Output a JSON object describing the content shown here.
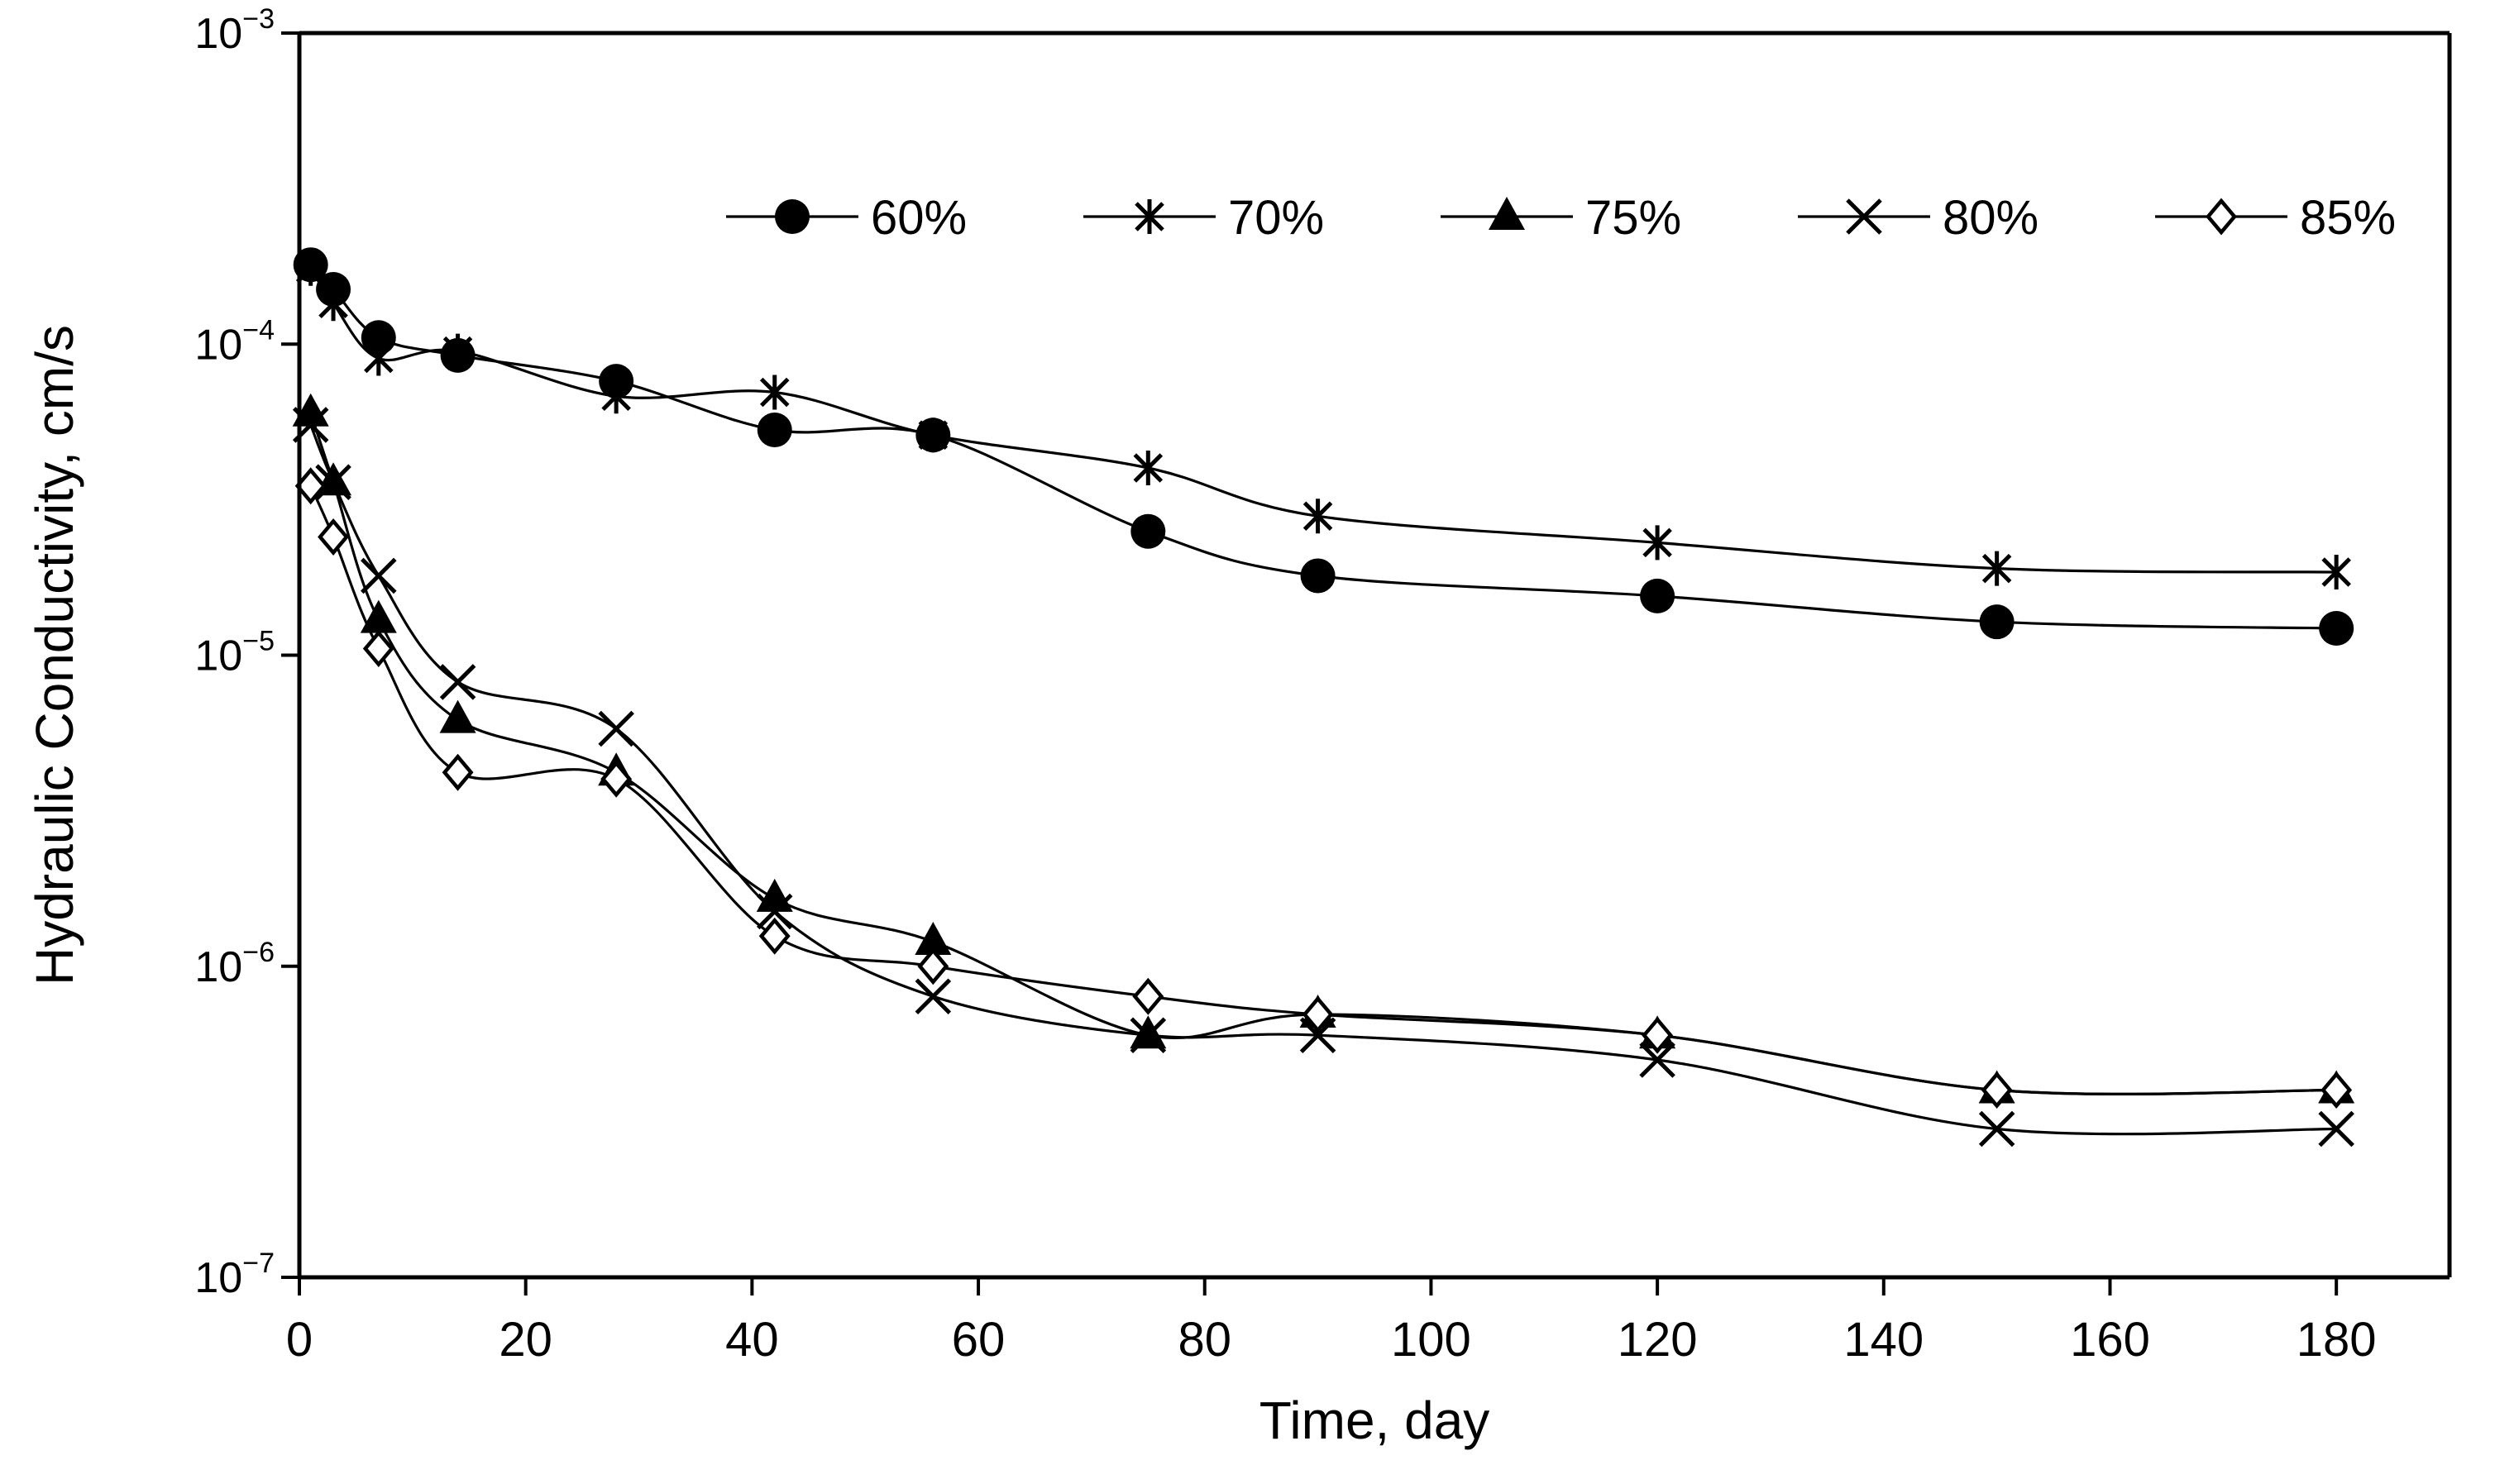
{
  "chart_data": {
    "type": "line",
    "title": "",
    "xlabel": "Time, day",
    "ylabel": "Hydraulic Conductivity, cm/s",
    "xlim": [
      0,
      190
    ],
    "ylim": [
      1e-07,
      0.001
    ],
    "yscale": "log",
    "x_ticks": [
      {
        "value": 0,
        "label": "0"
      },
      {
        "value": 20,
        "label": "20"
      },
      {
        "value": 40,
        "label": "40"
      },
      {
        "value": 60,
        "label": "60"
      },
      {
        "value": 80,
        "label": "80"
      },
      {
        "value": 100,
        "label": "100"
      },
      {
        "value": 120,
        "label": "120"
      },
      {
        "value": 140,
        "label": "140"
      },
      {
        "value": 160,
        "label": "160"
      },
      {
        "value": 180,
        "label": "180"
      }
    ],
    "y_ticks": [
      {
        "value": 1e-07,
        "base": "10",
        "exp": "−7"
      },
      {
        "value": 1e-06,
        "base": "10",
        "exp": "−6"
      },
      {
        "value": 1e-05,
        "base": "10",
        "exp": "−5"
      },
      {
        "value": 0.0001,
        "base": "10",
        "exp": "−4"
      },
      {
        "value": 0.001,
        "base": "10",
        "exp": "−3"
      }
    ],
    "legend_position": "top-right",
    "series": [
      {
        "name": "60%",
        "marker": "filled-circle",
        "x": [
          1,
          3,
          7,
          14,
          28,
          42,
          56,
          75,
          90,
          120,
          150,
          180
        ],
        "y": [
          0.00018,
          0.00015,
          0.000105,
          9.2e-05,
          7.6e-05,
          5.3e-05,
          5.1e-05,
          2.5e-05,
          1.8e-05,
          1.55e-05,
          1.28e-05,
          1.22e-05
        ]
      },
      {
        "name": "70%",
        "marker": "asterisk",
        "x": [
          1,
          3,
          7,
          14,
          28,
          42,
          56,
          75,
          90,
          120,
          150,
          180
        ],
        "y": [
          0.000175,
          0.000135,
          9e-05,
          9.5e-05,
          6.8e-05,
          7e-05,
          5.1e-05,
          4e-05,
          2.8e-05,
          2.3e-05,
          1.9e-05,
          1.85e-05
        ]
      },
      {
        "name": "75%",
        "marker": "filled-triangle",
        "x": [
          1,
          3,
          7,
          14,
          28,
          42,
          56,
          75,
          90,
          120,
          150,
          180
        ],
        "y": [
          6e-05,
          3.6e-05,
          1.3e-05,
          6.2e-06,
          4.2e-06,
          1.65e-06,
          1.2e-06,
          6e-07,
          7e-07,
          6e-07,
          4e-07,
          4e-07
        ]
      },
      {
        "name": "80%",
        "marker": "x-cross",
        "x": [
          1,
          3,
          7,
          14,
          28,
          42,
          56,
          75,
          90,
          120,
          150,
          180
        ],
        "y": [
          5.5e-05,
          3.6e-05,
          1.8e-05,
          8.2e-06,
          5.8e-06,
          1.5e-06,
          8e-07,
          6e-07,
          6e-07,
          5e-07,
          3e-07,
          3e-07
        ]
      },
      {
        "name": "85%",
        "marker": "open-diamond",
        "x": [
          1,
          3,
          7,
          14,
          28,
          42,
          56,
          75,
          90,
          120,
          150,
          180
        ],
        "y": [
          3.5e-05,
          2.4e-05,
          1.05e-05,
          4.2e-06,
          4e-06,
          1.25e-06,
          1e-06,
          8e-07,
          7e-07,
          6e-07,
          4e-07,
          4e-07
        ]
      }
    ]
  }
}
